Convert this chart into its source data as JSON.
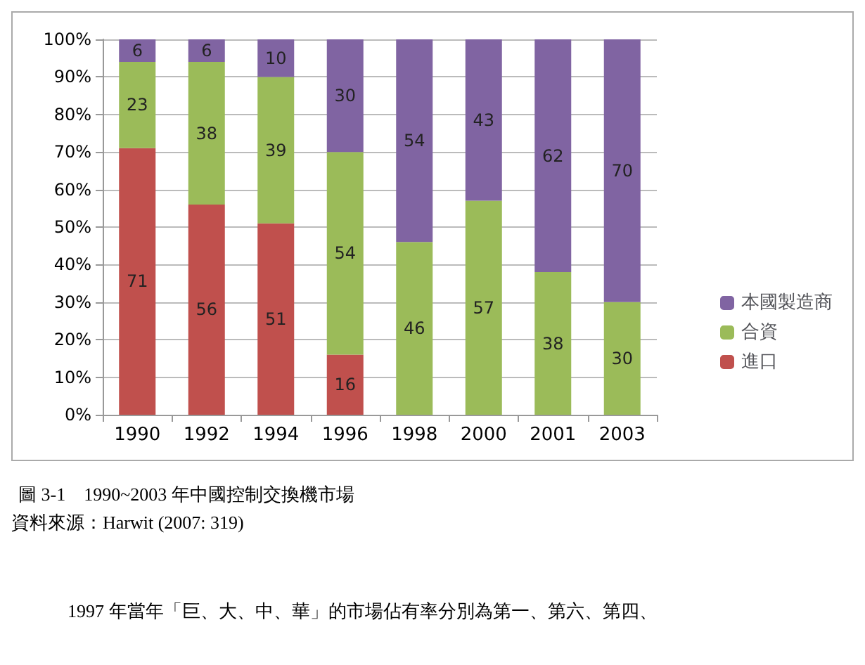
{
  "chart_data": {
    "type": "bar",
    "stacked": true,
    "title": "圖 3-1　1990~2003 年中國控制交換機市場",
    "annotations": [
      "資料來源：Harwit (2007: 319)",
      "1997 年當年「巨、大、中、華」的市場佔有率分別為第一、第六、第四、"
    ],
    "categories": [
      "1990",
      "1992",
      "1994",
      "1996",
      "1998",
      "2000",
      "2001",
      "2003"
    ],
    "series": [
      {
        "name": "進口",
        "color": "#c0504d",
        "values": [
          71,
          56,
          51,
          16,
          null,
          null,
          null,
          null
        ]
      },
      {
        "name": "合資",
        "color": "#9bbb59",
        "values": [
          23,
          38,
          39,
          54,
          46,
          57,
          38,
          30
        ]
      },
      {
        "name": "本國製造商",
        "color": "#8064a2",
        "values": [
          6,
          6,
          10,
          30,
          54,
          43,
          62,
          70
        ]
      }
    ],
    "ylim": [
      0,
      100
    ],
    "yticks": [
      {
        "value": 0,
        "label": "0%"
      },
      {
        "value": 10,
        "label": "10%"
      },
      {
        "value": 20,
        "label": "20%"
      },
      {
        "value": 30,
        "label": "30%"
      },
      {
        "value": 40,
        "label": "40%"
      },
      {
        "value": 50,
        "label": "50%"
      },
      {
        "value": 60,
        "label": "60%"
      },
      {
        "value": 70,
        "label": "70%"
      },
      {
        "value": 80,
        "label": "80%"
      },
      {
        "value": 90,
        "label": "90%"
      },
      {
        "value": 100,
        "label": "100%"
      }
    ],
    "grid": "y",
    "legend": "right",
    "data_labels": true
  }
}
